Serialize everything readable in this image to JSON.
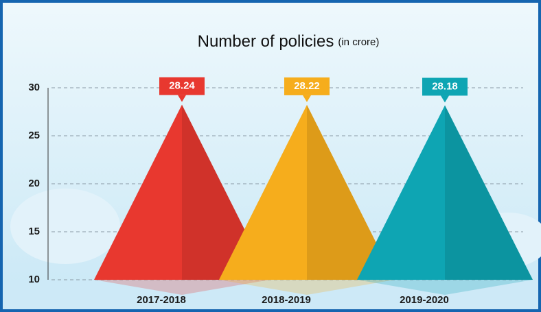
{
  "chart_data": {
    "type": "pyramid",
    "title": "Number of policies",
    "subtitle": "(in crore)",
    "categories": [
      "2017-2018",
      "2018-2019",
      "2019-2020"
    ],
    "values": [
      28.24,
      28.22,
      28.18
    ],
    "colors": [
      "#e8382f",
      "#f6ad1c",
      "#0ea5b3"
    ],
    "ylim": [
      10,
      30
    ],
    "yticks": [
      10,
      15,
      20,
      25,
      30
    ],
    "grid": true
  }
}
